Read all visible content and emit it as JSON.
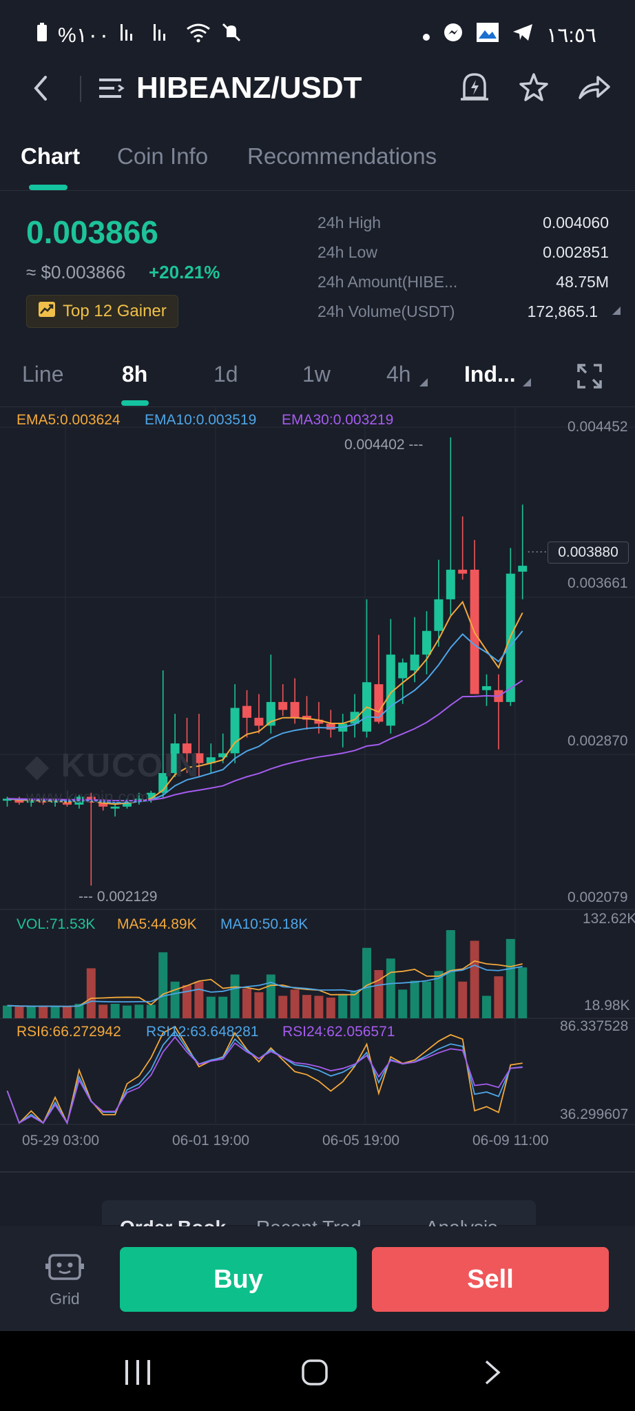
{
  "status_bar": {
    "battery": "%١٠٠",
    "time": "١٦:٥٦"
  },
  "header": {
    "pair": "HIBEANZ/USDT",
    "icons": [
      "back-icon",
      "menu-icon",
      "price-alert-icon",
      "star-icon",
      "share-icon"
    ]
  },
  "tabs": [
    {
      "label": "Chart"
    },
    {
      "label": "Coin Info"
    },
    {
      "label": "Recommendations"
    }
  ],
  "ticker": {
    "last_price": "0.003866",
    "fiat_price": "≈ $0.003866",
    "change": "+20.21%",
    "badge": "Top 12 Gainer",
    "stats": [
      {
        "label": "24h High",
        "value": "0.004060"
      },
      {
        "label": "24h Low",
        "value": "0.002851"
      },
      {
        "label": "24h Amount(HIBE...",
        "value": "48.75M"
      },
      {
        "label": "24h Volume(USDT)",
        "value": "172,865.1"
      }
    ]
  },
  "intervals": [
    {
      "label": "Line"
    },
    {
      "label": "8h"
    },
    {
      "label": "1d"
    },
    {
      "label": "1w"
    },
    {
      "label": "4h"
    },
    {
      "label": "Ind..."
    }
  ],
  "indicators": {
    "ema5": "EMA5:0.003624",
    "ema10": "EMA10:0.003519",
    "ema30": "EMA30:0.003219",
    "vol": "VOL:71.53K",
    "ma5": "MA5:44.89K",
    "ma10": "MA10:50.18K",
    "rsi6": "RSI6:66.272942",
    "rsi12": "RSI12:63.648281",
    "rsi24": "RSI24:62.056571"
  },
  "colors": {
    "up": "#1dc39a",
    "down": "#f0575a",
    "ema5": "#f4a93b",
    "ema10": "#4ea6e8",
    "ema30": "#a55cf0",
    "rsi6": "#f4a93b",
    "rsi12": "#4ea6e8",
    "rsi24": "#a55cf0"
  },
  "watermark": {
    "logo": "KUCOIN",
    "url": "www.kucoin.com"
  },
  "chart_data": {
    "type": "candlestick",
    "price_axis_labels": [
      "0.004452",
      "0.003661",
      "0.002870",
      "0.002079"
    ],
    "current_price_tag": "0.003880",
    "high_marker": "0.004402",
    "low_marker": "0.002129",
    "ylim": [
      0.002079,
      0.004452
    ],
    "volume_axis_labels": [
      "132.62K",
      "18.98K"
    ],
    "rsi_axis_labels": [
      "86.337528",
      "36.299607"
    ],
    "x_tick_labels": [
      "05-29 03:00",
      "06-01 19:00",
      "06-05 19:00",
      "06-09 11:00"
    ],
    "candles": [
      [
        0.00256,
        0.00258,
        0.00253,
        0.00257
      ],
      [
        0.00257,
        0.00258,
        0.00254,
        0.00255
      ],
      [
        0.00255,
        0.00257,
        0.00253,
        0.00256
      ],
      [
        0.00256,
        0.00258,
        0.00254,
        0.00255
      ],
      [
        0.00255,
        0.00257,
        0.00253,
        0.00256
      ],
      [
        0.00256,
        0.00257,
        0.00253,
        0.00254
      ],
      [
        0.00254,
        0.00259,
        0.00252,
        0.00258
      ],
      [
        0.00258,
        0.0026,
        0.00213,
        0.00255
      ],
      [
        0.00255,
        0.00257,
        0.00251,
        0.00253
      ],
      [
        0.00252,
        0.00255,
        0.00248,
        0.00253
      ],
      [
        0.00253,
        0.00257,
        0.00252,
        0.00256
      ],
      [
        0.00256,
        0.0026,
        0.00254,
        0.00257
      ],
      [
        0.00257,
        0.00261,
        0.00255,
        0.0026
      ],
      [
        0.0026,
        0.00322,
        0.00257,
        0.0027
      ],
      [
        0.0027,
        0.003,
        0.00268,
        0.00285
      ],
      [
        0.00285,
        0.00298,
        0.0027,
        0.0028
      ],
      [
        0.0028,
        0.003,
        0.00268,
        0.00275
      ],
      [
        0.00275,
        0.00285,
        0.0027,
        0.00278
      ],
      [
        0.00278,
        0.0029,
        0.00275,
        0.0028
      ],
      [
        0.0028,
        0.00315,
        0.00275,
        0.00303
      ],
      [
        0.00304,
        0.00312,
        0.00288,
        0.00298
      ],
      [
        0.00298,
        0.0031,
        0.0029,
        0.00294
      ],
      [
        0.00294,
        0.0033,
        0.0029,
        0.00306
      ],
      [
        0.00306,
        0.00315,
        0.00299,
        0.00302
      ],
      [
        0.00306,
        0.00318,
        0.00295,
        0.00298
      ],
      [
        0.00299,
        0.00309,
        0.00292,
        0.00297
      ],
      [
        0.00297,
        0.00306,
        0.0029,
        0.00295
      ],
      [
        0.00295,
        0.00302,
        0.00288,
        0.00292
      ],
      [
        0.00291,
        0.003,
        0.00283,
        0.00295
      ],
      [
        0.00295,
        0.0031,
        0.00288,
        0.00301
      ],
      [
        0.00291,
        0.00358,
        0.00288,
        0.00316
      ],
      [
        0.00315,
        0.0034,
        0.00295,
        0.00296
      ],
      [
        0.00294,
        0.00348,
        0.0029,
        0.0033
      ],
      [
        0.00318,
        0.00328,
        0.00305,
        0.00326
      ],
      [
        0.00322,
        0.00349,
        0.00316,
        0.0033
      ],
      [
        0.0033,
        0.00352,
        0.0032,
        0.00342
      ],
      [
        0.00342,
        0.00378,
        0.00334,
        0.00358
      ],
      [
        0.00358,
        0.0044,
        0.0035,
        0.00373
      ],
      [
        0.00373,
        0.004,
        0.00368,
        0.00371
      ],
      [
        0.00373,
        0.00388,
        0.0031,
        0.0031
      ],
      [
        0.00312,
        0.0032,
        0.00304,
        0.00314
      ],
      [
        0.00312,
        0.0032,
        0.00282,
        0.00306
      ],
      [
        0.00306,
        0.00384,
        0.00304,
        0.00371
      ],
      [
        0.00372,
        0.00406,
        0.00358,
        0.00375
      ]
    ]
  },
  "order_book_tabs": [
    {
      "label": "Order Book"
    },
    {
      "label": "Recent Trad..."
    },
    {
      "label": "Analysis"
    }
  ],
  "actions": {
    "grid_label": "Grid",
    "buy_label": "Buy",
    "sell_label": "Sell"
  }
}
